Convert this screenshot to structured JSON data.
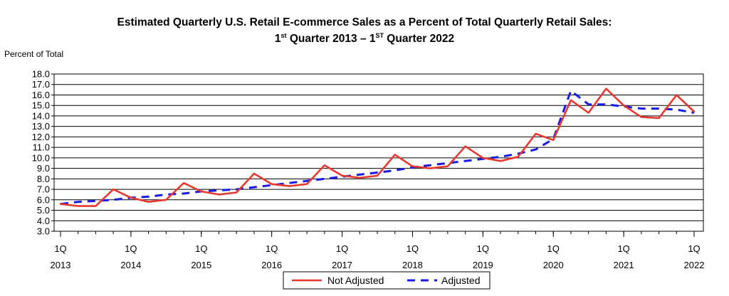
{
  "title": {
    "line1": "Estimated Quarterly U.S. Retail E-commerce Sales as a Percent of Total Quarterly Retail Sales:",
    "line2_a": "1",
    "line2_a_sup": "st",
    "line2_b": " Quarter 2013 – 1",
    "line2_b_sup": "ST",
    "line2_c": " Quarter 2022"
  },
  "chart_data": {
    "type": "line",
    "title": "Estimated Quarterly U.S. Retail E-commerce Sales as a Percent of Total Quarterly Retail Sales: 1st Quarter 2013 – 1ST Quarter 2022",
    "ylabel": "Percent of Total",
    "xlabel": "",
    "ylim": [
      3.0,
      18.0
    ],
    "ytick_step": 1.0,
    "yticks": [
      "3.0",
      "4.0",
      "5.0",
      "6.0",
      "7.0",
      "8.0",
      "9.0",
      "10.0",
      "11.0",
      "12.0",
      "13.0",
      "14.0",
      "15.0",
      "16.0",
      "17.0",
      "18.0"
    ],
    "grid": "horizontal",
    "legend_position": "bottom-center",
    "x_quarters": [
      "2013Q1",
      "2013Q2",
      "2013Q3",
      "2013Q4",
      "2014Q1",
      "2014Q2",
      "2014Q3",
      "2014Q4",
      "2015Q1",
      "2015Q2",
      "2015Q3",
      "2015Q4",
      "2016Q1",
      "2016Q2",
      "2016Q3",
      "2016Q4",
      "2017Q1",
      "2017Q2",
      "2017Q3",
      "2017Q4",
      "2018Q1",
      "2018Q2",
      "2018Q3",
      "2018Q4",
      "2019Q1",
      "2019Q2",
      "2019Q3",
      "2019Q4",
      "2020Q1",
      "2020Q2",
      "2020Q3",
      "2020Q4",
      "2021Q1",
      "2021Q2",
      "2021Q3",
      "2021Q4",
      "2022Q1"
    ],
    "xtick_labels": [
      {
        "quarter": "1Q",
        "year": "2013"
      },
      {
        "quarter": "1Q",
        "year": "2014"
      },
      {
        "quarter": "1Q",
        "year": "2015"
      },
      {
        "quarter": "1Q",
        "year": "2016"
      },
      {
        "quarter": "1Q",
        "year": "2017"
      },
      {
        "quarter": "1Q",
        "year": "2018"
      },
      {
        "quarter": "1Q",
        "year": "2019"
      },
      {
        "quarter": "1Q",
        "year": "2020"
      },
      {
        "quarter": "1Q",
        "year": "2021"
      },
      {
        "quarter": "1Q",
        "year": "2022"
      }
    ],
    "series": [
      {
        "name": "Not Adjusted",
        "color": "#e8392f",
        "style": "solid",
        "values": [
          5.6,
          5.4,
          5.4,
          7.0,
          6.2,
          5.8,
          6.0,
          7.6,
          6.8,
          6.5,
          6.7,
          8.5,
          7.5,
          7.3,
          7.5,
          9.3,
          8.3,
          8.1,
          8.3,
          10.3,
          9.2,
          9.0,
          9.2,
          11.1,
          10.0,
          9.7,
          10.1,
          12.3,
          11.7,
          15.5,
          14.3,
          16.6,
          15.0,
          13.9,
          13.8,
          16.0,
          14.4
        ]
      },
      {
        "name": "Adjusted",
        "color": "#1a1ae6",
        "style": "dashed",
        "values": [
          5.6,
          5.8,
          5.9,
          6.0,
          6.2,
          6.3,
          6.5,
          6.6,
          6.8,
          6.9,
          7.0,
          7.2,
          7.4,
          7.6,
          7.8,
          8.0,
          8.2,
          8.4,
          8.6,
          8.8,
          9.1,
          9.3,
          9.5,
          9.7,
          9.9,
          10.1,
          10.4,
          10.8,
          11.8,
          16.4,
          15.1,
          15.1,
          14.9,
          14.7,
          14.7,
          14.6,
          14.3
        ]
      }
    ]
  }
}
